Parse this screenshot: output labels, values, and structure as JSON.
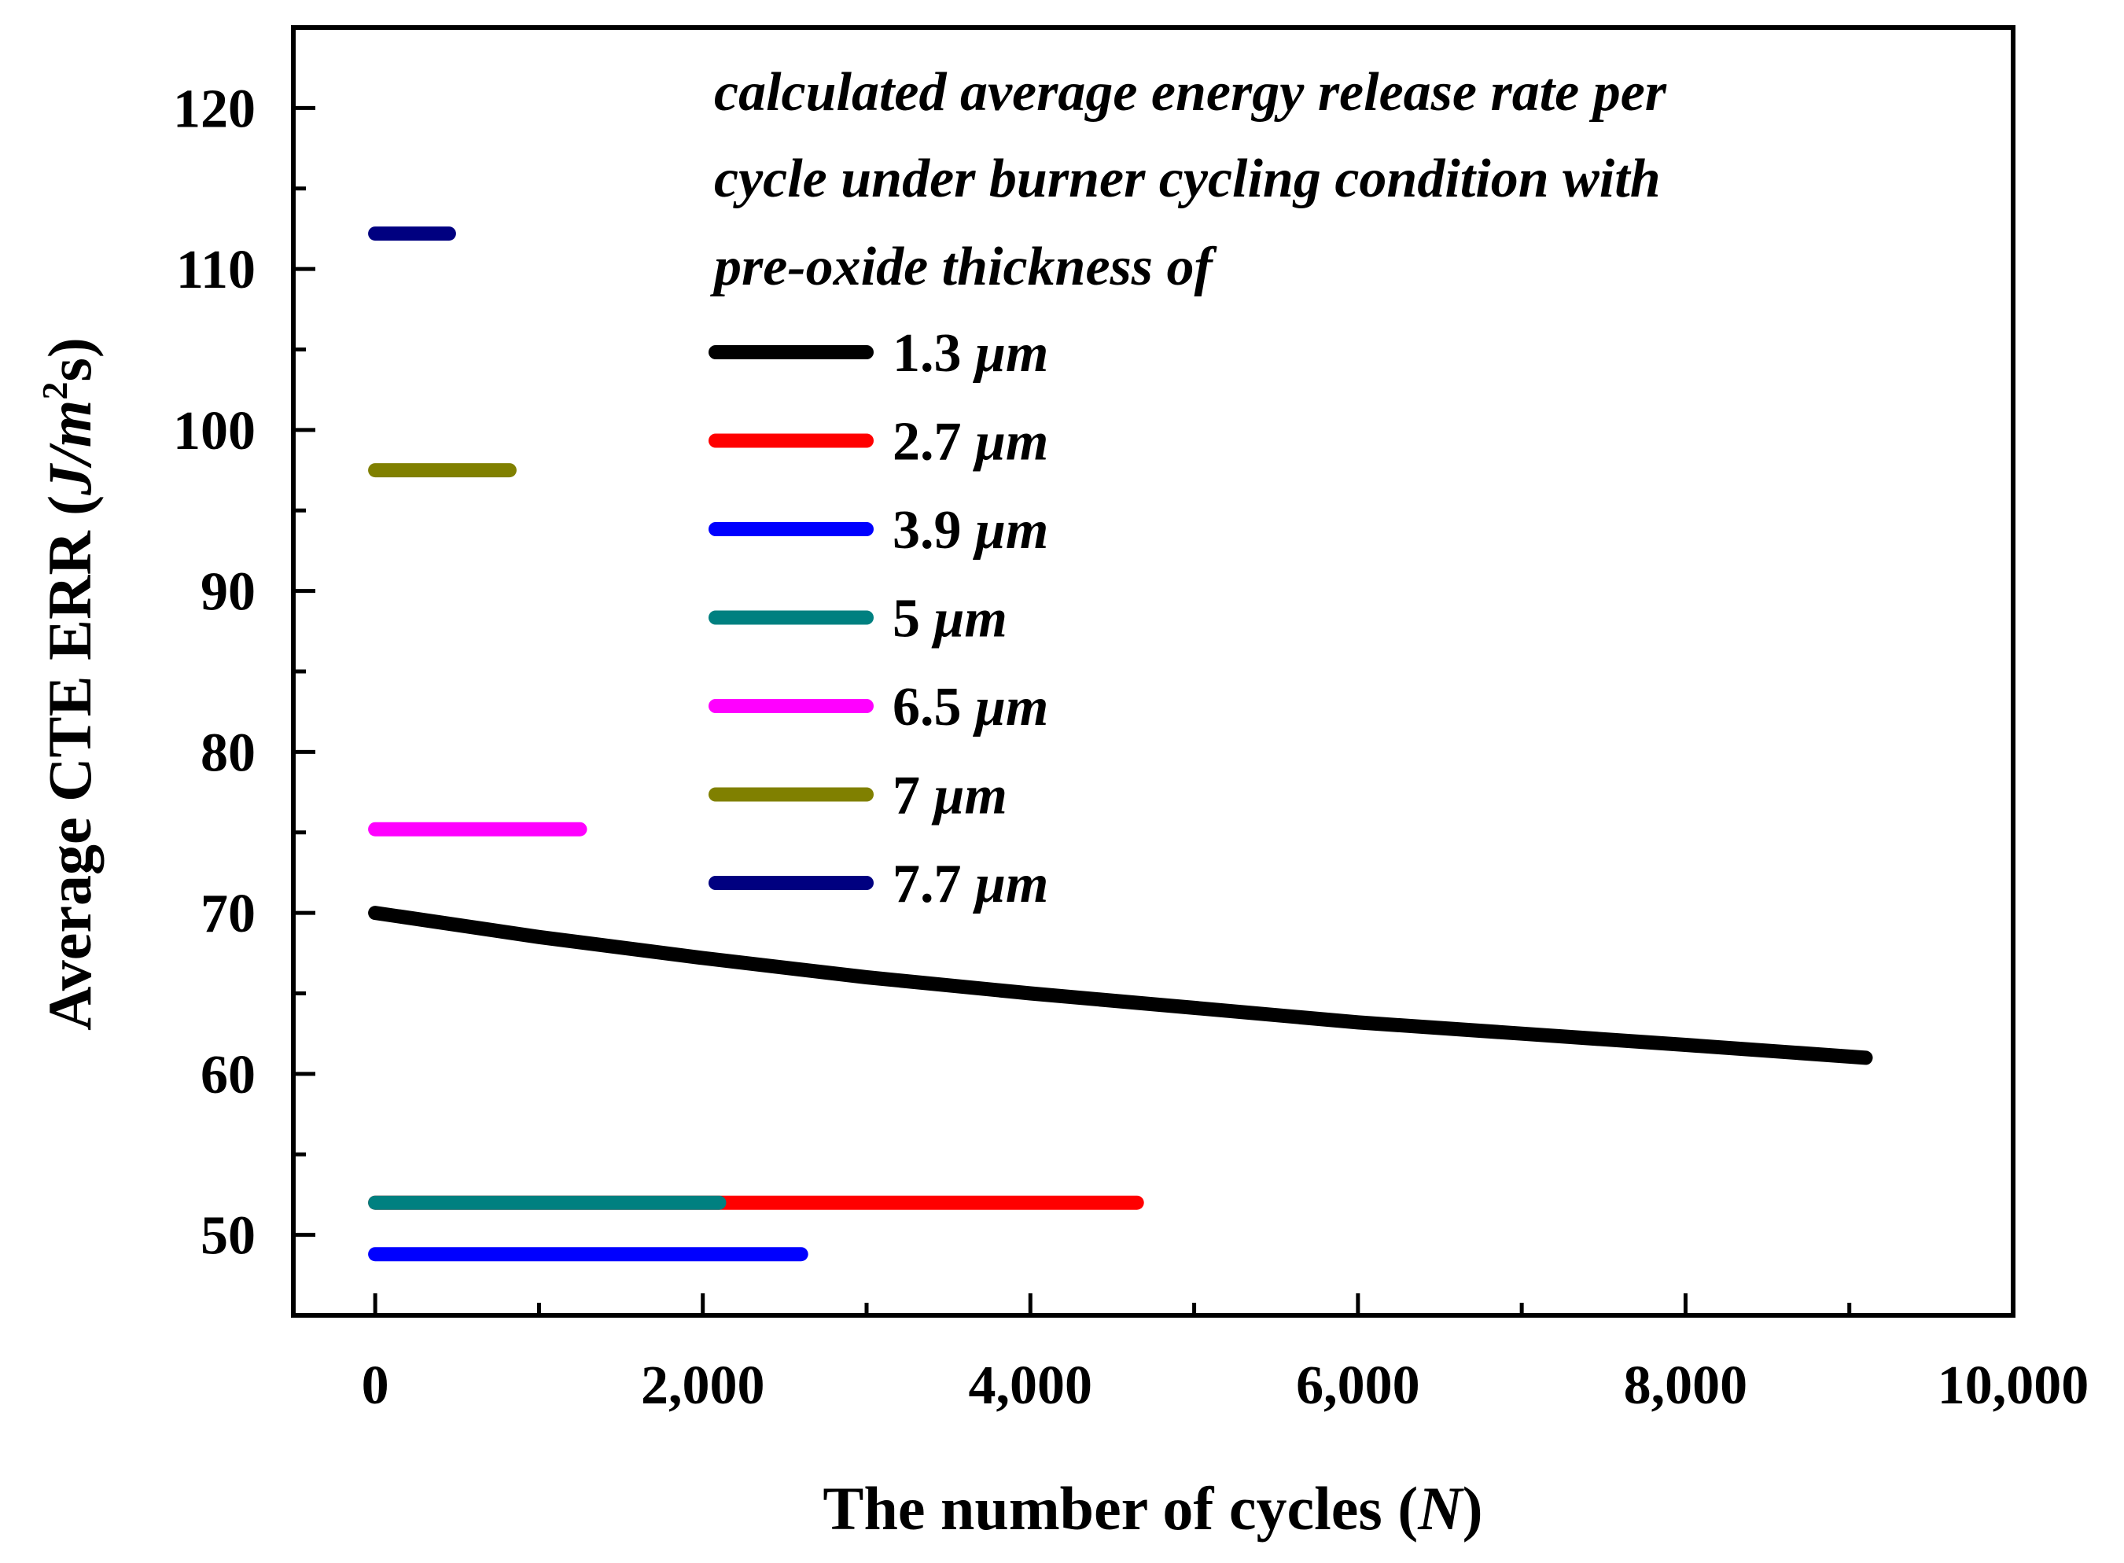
{
  "chart_data": {
    "type": "line",
    "title": "",
    "xlabel_prefix": "The number of cycles (",
    "xlabel_var": "N",
    "xlabel_suffix": ")",
    "ylabel_prefix": "Average CTE ERR (",
    "ylabel_unit": "J/m",
    "ylabel_sup": "2",
    "ylabel_suffix": "s)",
    "xlim": [
      -500,
      10000
    ],
    "ylim": [
      45,
      125
    ],
    "xticks": [
      0,
      2000,
      4000,
      6000,
      8000,
      10000
    ],
    "xtick_labels": [
      "0",
      "2,000",
      "4,000",
      "6,000",
      "8,000",
      "10,000"
    ],
    "yticks": [
      50,
      60,
      70,
      80,
      90,
      100,
      110,
      120
    ],
    "ytick_labels": [
      "50",
      "60",
      "70",
      "80",
      "90",
      "100",
      "110",
      "120"
    ],
    "legend_title_lines": [
      "calculated average energy release rate per",
      "cycle under burner cycling condition with",
      "pre-oxide thickness of"
    ],
    "legend_placement": "top-right",
    "grid": false,
    "series": [
      {
        "name": "1.3",
        "unit": "μm",
        "color": "#000000",
        "x": [
          0,
          1000,
          2000,
          3000,
          4000,
          5000,
          6000,
          7000,
          8000,
          9100
        ],
        "y": [
          70.0,
          68.5,
          67.2,
          66.0,
          65.0,
          64.1,
          63.2,
          62.5,
          61.8,
          61.0
        ]
      },
      {
        "name": "2.7",
        "unit": "μm",
        "color": "#ff0000",
        "x": [
          0,
          4650
        ],
        "y": [
          52.0,
          52.0
        ]
      },
      {
        "name": "3.9",
        "unit": "μm",
        "color": "#0000ff",
        "x": [
          0,
          2600
        ],
        "y": [
          48.8,
          48.8
        ]
      },
      {
        "name": "5",
        "unit": "μm",
        "color": "#008080",
        "x": [
          0,
          2100
        ],
        "y": [
          52.0,
          52.0
        ]
      },
      {
        "name": "6.5",
        "unit": "μm",
        "color": "#ff00ff",
        "x": [
          0,
          1250
        ],
        "y": [
          75.2,
          75.2
        ]
      },
      {
        "name": "7",
        "unit": "μm",
        "color": "#808000",
        "x": [
          0,
          820
        ],
        "y": [
          97.5,
          97.5
        ]
      },
      {
        "name": "7.7",
        "unit": "μm",
        "color": "#000080",
        "x": [
          0,
          450
        ],
        "y": [
          112.2,
          112.2
        ]
      }
    ],
    "draw_order": [
      "1.3",
      "2.7",
      "3.9",
      "5",
      "6.5",
      "7",
      "7.7"
    ]
  }
}
